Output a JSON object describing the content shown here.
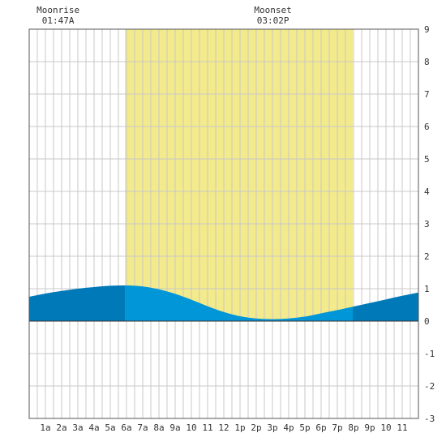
{
  "chart_data": {
    "type": "area",
    "title": "",
    "xlabel": "",
    "ylabel": "",
    "xlim": [
      0,
      24
    ],
    "ylim": [
      -3,
      9
    ],
    "y_ticks": [
      -3,
      -2,
      -1,
      0,
      1,
      2,
      3,
      4,
      5,
      6,
      7,
      8,
      9
    ],
    "x_tick_labels": [
      "1a",
      "2a",
      "3a",
      "4a",
      "5a",
      "6a",
      "7a",
      "8a",
      "9a",
      "10",
      "11",
      "12",
      "1p",
      "2p",
      "3p",
      "4p",
      "5p",
      "6p",
      "7p",
      "8p",
      "9p",
      "10",
      "11"
    ],
    "grid": true,
    "daylight": {
      "start_hour": 5.9,
      "end_hour": 19.95
    },
    "moon_events": [
      {
        "label": "Moonrise",
        "time": "01:47A",
        "hour": 1.78
      },
      {
        "label": "Moonset",
        "time": "03:02P",
        "hour": 15.03
      }
    ],
    "series": [
      {
        "x": [
          0,
          1,
          2,
          3,
          4,
          5,
          6,
          7,
          8,
          9,
          10,
          11,
          12,
          13,
          14,
          15,
          16,
          17,
          18,
          19,
          20,
          21,
          22,
          23,
          24
        ],
        "values": [
          0.75,
          0.85,
          0.93,
          1.0,
          1.05,
          1.09,
          1.1,
          1.07,
          0.98,
          0.84,
          0.66,
          0.46,
          0.28,
          0.15,
          0.08,
          0.06,
          0.08,
          0.14,
          0.24,
          0.34,
          0.45,
          0.56,
          0.67,
          0.78,
          0.88
        ]
      }
    ],
    "colors": {
      "night_fill": "#0079b8",
      "day_fill": "#0096d8",
      "daylight_band": "#f3ea8b",
      "grid": "#c8c8c8",
      "frame": "#555555"
    }
  }
}
